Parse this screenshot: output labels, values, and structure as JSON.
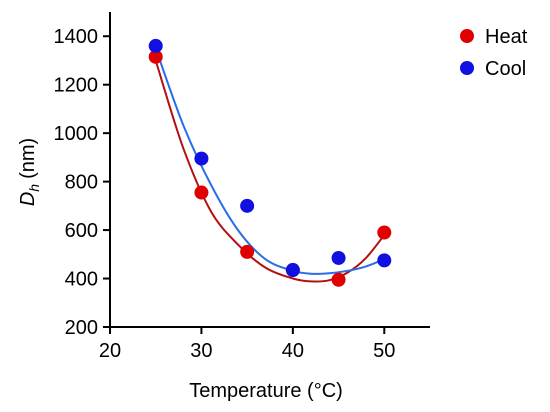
{
  "chart_data": {
    "type": "scatter",
    "xlabel": "Temperature (°C)",
    "ylabel": {
      "main": "D",
      "sub": "h",
      "unit": "(nm)"
    },
    "xlim": [
      20,
      55
    ],
    "ylim": [
      200,
      1500
    ],
    "x_ticks": [
      20,
      30,
      40,
      50
    ],
    "y_ticks": [
      200,
      400,
      600,
      800,
      1000,
      1200,
      1400
    ],
    "legend_position": "top-right outside",
    "grid": false,
    "series": [
      {
        "name": "Heat",
        "color": "#e00000",
        "curve_color": "#b31010",
        "x": [
          25,
          30,
          35,
          40,
          45,
          50
        ],
        "y": [
          1315,
          755,
          510,
          435,
          395,
          590
        ],
        "fit": [
          [
            25,
            1300
          ],
          [
            28,
            940
          ],
          [
            31,
            680
          ],
          [
            34,
            540
          ],
          [
            37,
            445
          ],
          [
            40,
            400
          ],
          [
            42,
            388
          ],
          [
            44,
            393
          ],
          [
            46,
            425
          ],
          [
            48,
            485
          ],
          [
            50,
            580
          ]
        ]
      },
      {
        "name": "Cool",
        "color": "#1010e0",
        "curve_color": "#2a6de8",
        "x": [
          25,
          30,
          35,
          40,
          45,
          50
        ],
        "y": [
          1360,
          895,
          700,
          435,
          485,
          475
        ],
        "fit": [
          [
            25,
            1350
          ],
          [
            28,
            1035
          ],
          [
            31,
            790
          ],
          [
            34,
            600
          ],
          [
            37,
            480
          ],
          [
            40,
            432
          ],
          [
            42,
            420
          ],
          [
            44,
            422
          ],
          [
            46,
            432
          ],
          [
            48,
            450
          ],
          [
            50,
            480
          ]
        ]
      }
    ]
  }
}
